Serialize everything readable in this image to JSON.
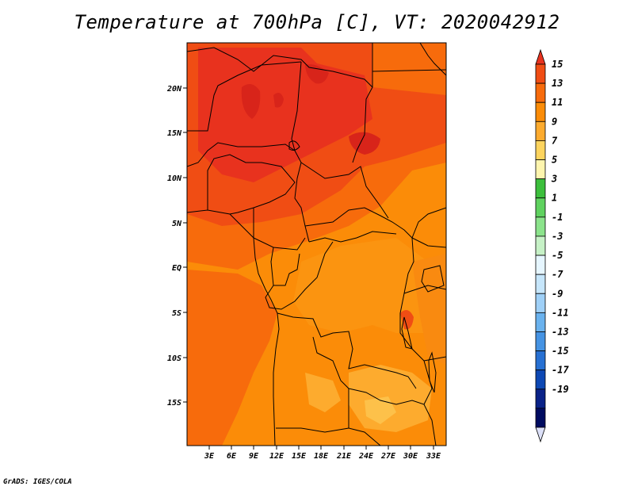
{
  "title": "Temperature at 700hPa [C], VT: 2020042912",
  "credit": "GrADS: IGES/COLA",
  "map": {
    "lat_labels": [
      "20N",
      "15N",
      "10N",
      "5N",
      "EQ",
      "5S",
      "10S",
      "15S"
    ],
    "lon_labels": [
      "3E",
      "6E",
      "9E",
      "12E",
      "15E",
      "18E",
      "21E",
      "24E",
      "27E",
      "30E",
      "33E"
    ]
  },
  "colorbar": {
    "labels": [
      "15",
      "13",
      "11",
      "9",
      "7",
      "5",
      "3",
      "1",
      "-1",
      "-3",
      "-5",
      "-7",
      "-9",
      "-11",
      "-13",
      "-15",
      "-17",
      "-19"
    ],
    "colors": [
      "#e8321e",
      "#f04d14",
      "#f76b0c",
      "#fb8c08",
      "#fdab2e",
      "#fdd45e",
      "#fef5ae",
      "#3cbf3c",
      "#5fd25f",
      "#8be38b",
      "#c6f1c6",
      "#e6f6ff",
      "#c6e6fb",
      "#9fd0f7",
      "#6ab2ee",
      "#4593e3",
      "#2770d2",
      "#0d48b4",
      "#0a2288",
      "#000b60",
      "#dce0f8"
    ]
  }
}
